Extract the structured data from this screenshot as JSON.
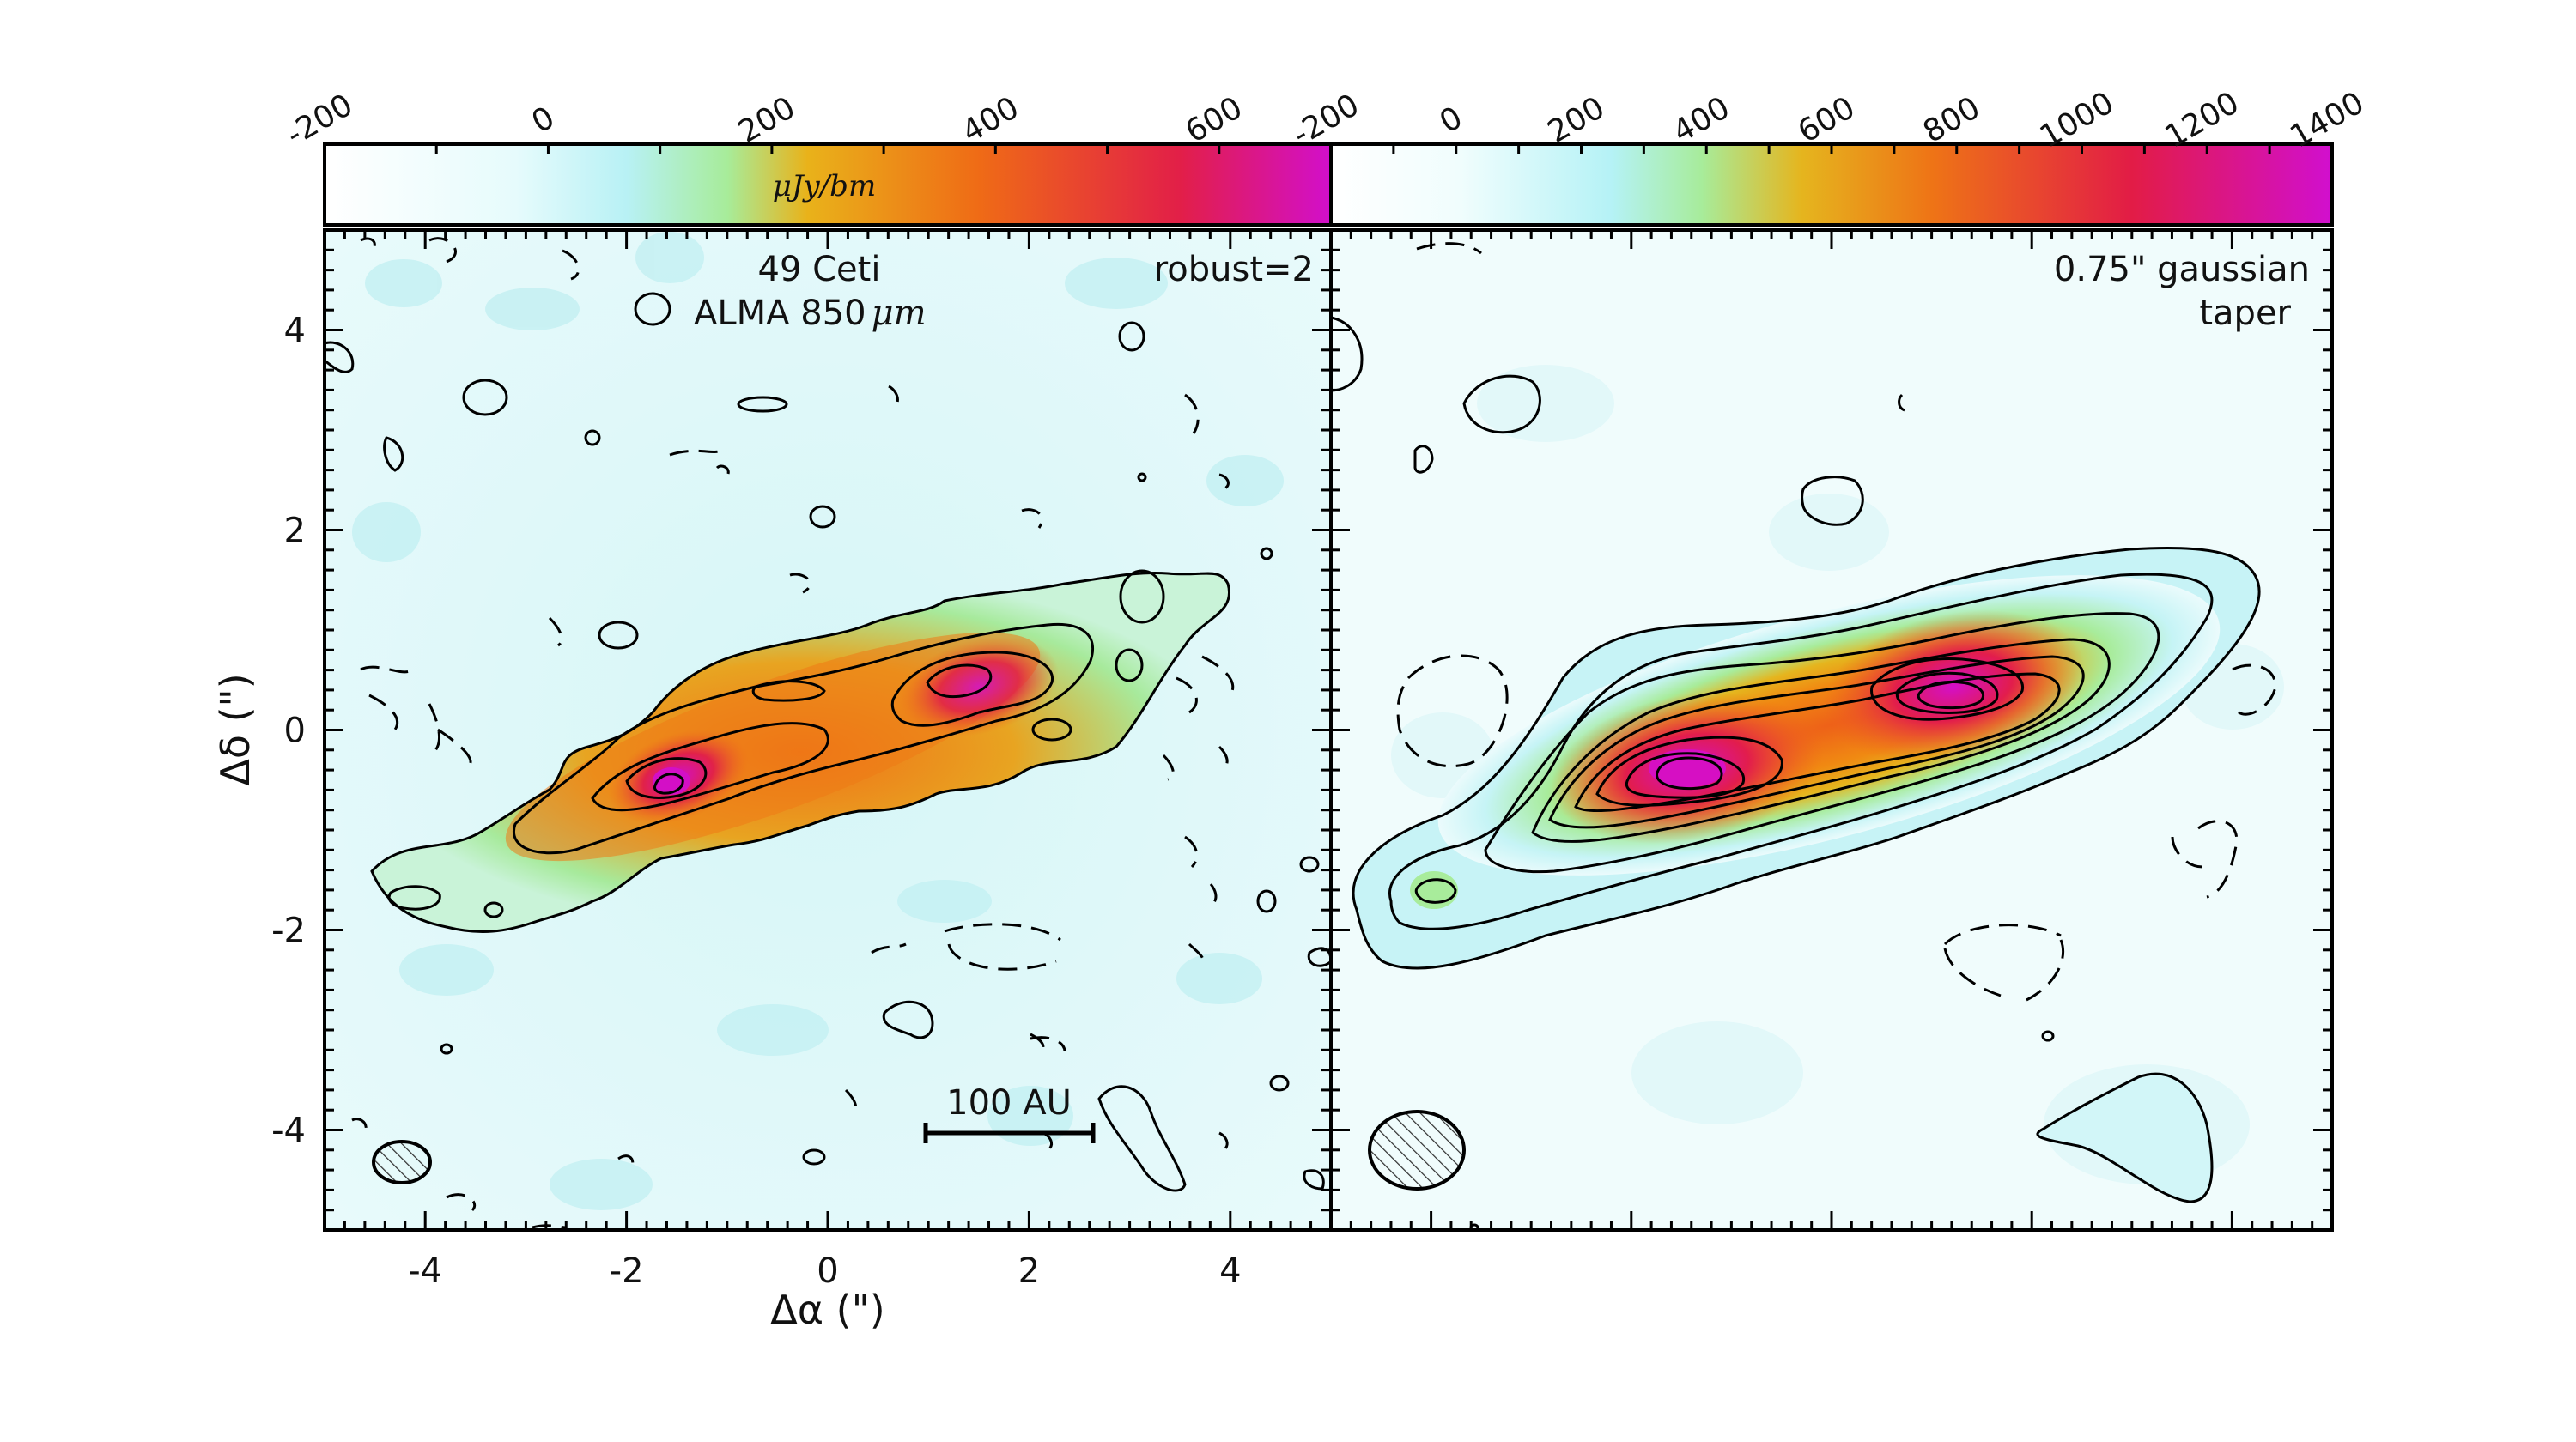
{
  "chart_data": [
    {
      "type": "heatmap",
      "panel": "left",
      "title": "49 Ceti",
      "subtitle": "ALMA 850",
      "subtitle_unit": "μm",
      "annotation": "robust=2",
      "colorbar_label": "μJy/bm",
      "colorbar_ticks": [
        "-200",
        "0",
        "200",
        "400",
        "600"
      ],
      "colorbar_range": [
        -200,
        700
      ],
      "xlabel": "Δα (\")",
      "ylabel": "Δδ (\")",
      "x_ticks": [
        "-4",
        "-2",
        "0",
        "2",
        "4"
      ],
      "y_ticks": [
        "4",
        "2",
        "0",
        "-2",
        "-4"
      ],
      "xlim": [
        -5,
        5
      ],
      "ylim": [
        -5,
        5
      ],
      "scale_bar_label": "100 AU",
      "colormap": [
        "#ffffff",
        "#b6f0f3",
        "#a8ec9c",
        "#e6b21c",
        "#ef6a18",
        "#e21e46",
        "#d20fc8"
      ],
      "contour_color": "#000000"
    },
    {
      "type": "heatmap",
      "panel": "right",
      "annotation_line1": "0.75\" gaussian",
      "annotation_line2": "taper",
      "colorbar_ticks": [
        "-200",
        "0",
        "200",
        "400",
        "600",
        "800",
        "1000",
        "1200",
        "1400"
      ],
      "colorbar_range": [
        -200,
        1400
      ],
      "xlim": [
        -5,
        5
      ],
      "ylim": [
        -5,
        5
      ]
    }
  ]
}
